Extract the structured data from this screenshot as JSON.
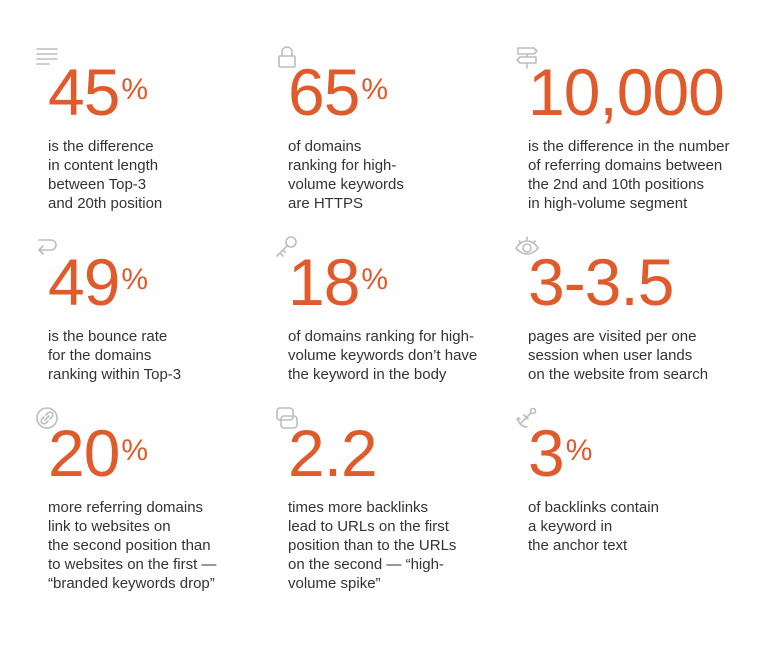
{
  "accent_color": "#e05a2b",
  "stats": [
    {
      "icon": "text-lines-icon",
      "value": "45",
      "unit": "%",
      "text": "is the difference\nin content length\nbetween Top-3\nand 20th position"
    },
    {
      "icon": "lock-icon",
      "value": "65",
      "unit": "%",
      "text": "of domains\nranking for high-\nvolume keywords\nare HTTPS"
    },
    {
      "icon": "signpost-icon",
      "value": "10,000",
      "unit": "",
      "text": "is the difference in the number\nof referring domains between\nthe 2nd and 10th positions\nin high-volume segment"
    },
    {
      "icon": "return-arrow-icon",
      "value": "49",
      "unit": "%",
      "text": "is the bounce rate\nfor the domains\nranking within Top-3"
    },
    {
      "icon": "key-icon",
      "value": "18",
      "unit": "%",
      "text": "of domains ranking for high-\nvolume keywords don’t have\nthe keyword in the body"
    },
    {
      "icon": "eye-icon",
      "value": "3-3.5",
      "unit": "",
      "text": "pages are visited per one\nsession when user lands\non the website from search"
    },
    {
      "icon": "link-icon",
      "value": "20",
      "unit": "%",
      "text": "more referring domains\nlink to websites on\nthe second position than\nto websites on the first —\n“branded keywords drop”"
    },
    {
      "icon": "overlapping-squares-icon",
      "value": "2.2",
      "unit": "",
      "text": "times more backlinks\nlead to URLs on the first\nposition than to the URLs\non the second — “high-\nvolume spike”"
    },
    {
      "icon": "anchor-icon",
      "value": "3",
      "unit": "%",
      "text": "of backlinks contain\na keyword in\nthe anchor text"
    }
  ]
}
